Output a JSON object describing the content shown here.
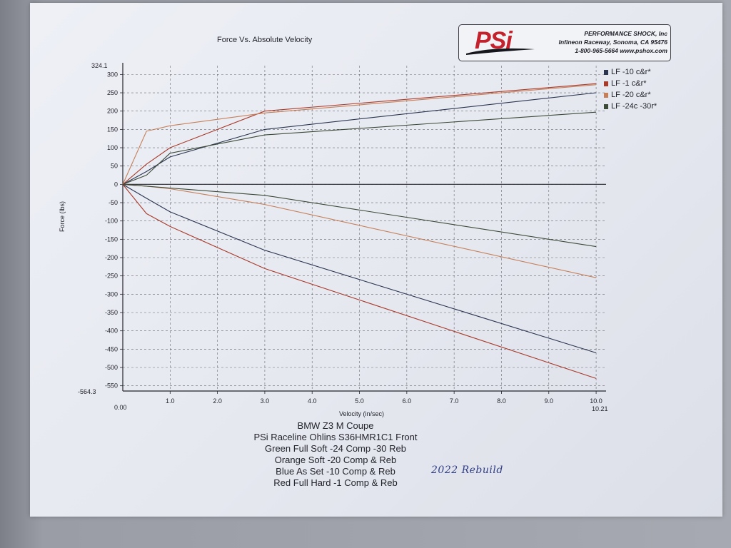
{
  "page_title": "Force Vs. Absolute Velocity",
  "logo": {
    "mark": "PSi",
    "lines": [
      "PERFORMANCE SHOCK, Inc",
      "Infineon Raceway, Sonoma, CA 95476",
      "1-800-965-5664    www.pshox.com"
    ]
  },
  "notes": [
    "BMW Z3 M Coupe",
    "PSi Raceline Ohlins S36HMR1C1 Front",
    "Green Full Soft -24 Comp -30 Reb",
    "Orange Soft -20 Comp & Reb",
    "Blue As Set -10 Comp & Reb",
    "Red Full Hard -1 Comp & Reb"
  ],
  "handwritten_note": "2022 Rebuild",
  "colors": {
    "blue": "#2a3550",
    "red": "#a83a2a",
    "orange": "#c5805a",
    "green": "#3c4a38",
    "grid": "#3f3f46",
    "axis": "#23232b"
  },
  "chart_data": {
    "type": "line",
    "title": "Force Vs. Absolute Velocity",
    "xlabel": "Velocity (in/sec)",
    "ylabel": "Force (lbs)",
    "xlim": [
      0.0,
      10.21
    ],
    "ylim": [
      -564.3,
      324.1
    ],
    "xlim_labels": [
      "0.00",
      "10.21"
    ],
    "ylim_labels": [
      "324.1",
      "-564.3"
    ],
    "xticks": [
      "1.0",
      "2.0",
      "3.0",
      "4.0",
      "5.0",
      "6.0",
      "7.0",
      "8.0",
      "9.0",
      "10.0"
    ],
    "yticks": [
      "300",
      "250",
      "200",
      "150",
      "100",
      "50",
      "0",
      "-50",
      "-100",
      "-150",
      "-200",
      "-250",
      "-300",
      "-350",
      "-400",
      "-450",
      "-500",
      "-550"
    ],
    "grid": true,
    "legend_position": "right",
    "x": [
      0,
      0.5,
      1.0,
      3.0,
      10.0
    ],
    "series": [
      {
        "name": "LF -10 c&r*",
        "color": "#2a3550",
        "compression": [
          0,
          35,
          75,
          150,
          250
        ],
        "rebound": [
          0,
          -38,
          -75,
          -180,
          -460
        ]
      },
      {
        "name": "LF -1 c&r*",
        "color": "#a83a2a",
        "compression": [
          0,
          55,
          100,
          200,
          275
        ],
        "rebound": [
          0,
          -80,
          -115,
          -230,
          -530
        ]
      },
      {
        "name": "LF -20 c&r*",
        "color": "#c5805a",
        "compression": [
          0,
          145,
          160,
          195,
          272
        ],
        "rebound": [
          0,
          -5,
          -12,
          -55,
          -255
        ]
      },
      {
        "name": "LF -24c -30r*",
        "color": "#3c4a38",
        "compression": [
          0,
          25,
          85,
          135,
          197
        ],
        "rebound": [
          0,
          -5,
          -10,
          -30,
          -170
        ]
      }
    ]
  }
}
